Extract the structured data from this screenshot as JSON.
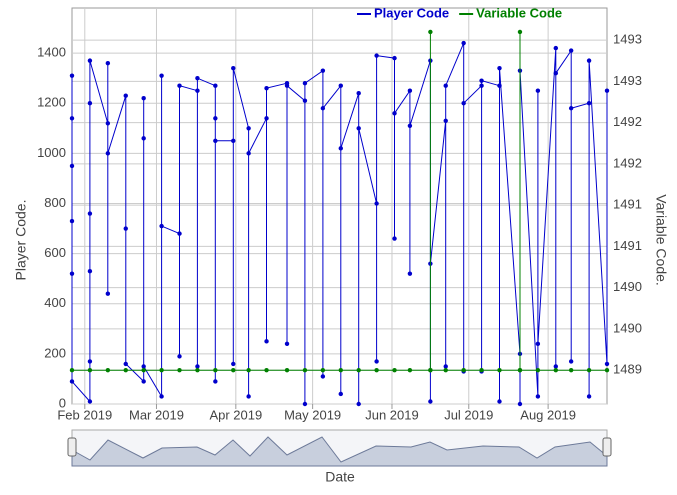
{
  "chart_data": {
    "type": "line",
    "xlabel": "Date",
    "ylabel": "Player Code.",
    "y2label": "Variable Code.",
    "xlim": [
      -5,
      204
    ],
    "xticks": [
      {
        "value": 0,
        "label": "Feb 2019"
      },
      {
        "value": 28,
        "label": "Mar 2019"
      },
      {
        "value": 59,
        "label": "Apr 2019"
      },
      {
        "value": 89,
        "label": "May 2019"
      },
      {
        "value": 120,
        "label": "Jun 2019"
      },
      {
        "value": 150,
        "label": "Jul 2019"
      },
      {
        "value": 181,
        "label": "Aug 2019"
      }
    ],
    "ylim": [
      0,
      1580
    ],
    "yticks": [
      0,
      200,
      400,
      600,
      800,
      1000,
      1200,
      1400
    ],
    "y2lim": [
      1488.59,
      1493.39
    ],
    "y2ticks": [
      1489,
      {
        "value": 1489.5,
        "label": "1490"
      },
      1490,
      {
        "value": 1490.5,
        "label": "1491"
      },
      1491,
      {
        "value": 1491.5,
        "label": "1492"
      },
      1492,
      {
        "value": 1492.5,
        "label": "1493"
      },
      1493
    ],
    "grid": true,
    "legend": "top-right",
    "series": [
      {
        "name": "Player Code",
        "color": "#0000cc",
        "x": [
          -5,
          -5,
          -5,
          -5,
          -5,
          -5,
          2,
          2,
          2,
          2,
          2,
          2,
          9,
          9,
          9,
          9,
          16,
          16,
          16,
          23,
          23,
          23,
          23,
          30,
          30,
          30,
          37,
          37,
          37,
          44,
          44,
          44,
          51,
          51,
          51,
          51,
          58,
          58,
          58,
          64,
          64,
          64,
          71,
          71,
          71,
          79,
          79,
          79,
          86,
          86,
          86,
          93,
          93,
          93,
          100,
          100,
          100,
          107,
          107,
          107,
          114,
          114,
          114,
          121,
          121,
          121,
          127,
          127,
          127,
          135,
          135,
          135,
          141,
          141,
          141,
          148,
          148,
          148,
          155,
          155,
          155,
          162,
          162,
          162,
          170,
          170,
          170,
          177,
          177,
          177,
          184,
          184,
          184,
          190,
          190,
          190,
          197,
          197,
          197,
          204,
          204
        ],
        "values": [
          1310,
          1140,
          950,
          730,
          520,
          90,
          10,
          170,
          530,
          760,
          1200,
          1370,
          1120,
          440,
          1360,
          1000,
          1230,
          700,
          160,
          90,
          1220,
          1060,
          150,
          30,
          1310,
          710,
          680,
          190,
          1270,
          1250,
          150,
          1300,
          1270,
          90,
          1140,
          1050,
          1050,
          160,
          1340,
          1100,
          30,
          1000,
          1140,
          250,
          1260,
          1280,
          240,
          1270,
          1210,
          0,
          1280,
          1330,
          110,
          1180,
          1270,
          40,
          1020,
          1240,
          0,
          1100,
          800,
          170,
          1390,
          1380,
          660,
          1160,
          1250,
          520,
          1110,
          1370,
          10,
          560,
          1130,
          150,
          1270,
          1440,
          130,
          1200,
          1270,
          130,
          1290,
          1270,
          10,
          1340,
          200,
          0,
          1330,
          30,
          1250,
          240,
          1420,
          150,
          1320,
          1410,
          170,
          1180,
          1200,
          30,
          1370,
          160,
          1250
        ]
      },
      {
        "name": "Variable Code",
        "color": "#008000",
        "axis": "y2",
        "x": [
          -5,
          2,
          9,
          16,
          23,
          30,
          37,
          44,
          51,
          58,
          64,
          71,
          79,
          86,
          93,
          100,
          107,
          114,
          121,
          127,
          135,
          135,
          135,
          141,
          148,
          155,
          162,
          170,
          170,
          170,
          177,
          184,
          190,
          197,
          204
        ],
        "values": [
          1489,
          1489,
          1489,
          1489,
          1489,
          1489,
          1489,
          1489,
          1489,
          1489,
          1489,
          1489,
          1489,
          1489,
          1489,
          1489,
          1489,
          1489,
          1489,
          1489,
          1489,
          1493.1,
          1489,
          1489,
          1489,
          1489,
          1489,
          1489,
          1493.1,
          1489,
          1489,
          1489,
          1489,
          1489,
          1489
        ]
      }
    ]
  }
}
